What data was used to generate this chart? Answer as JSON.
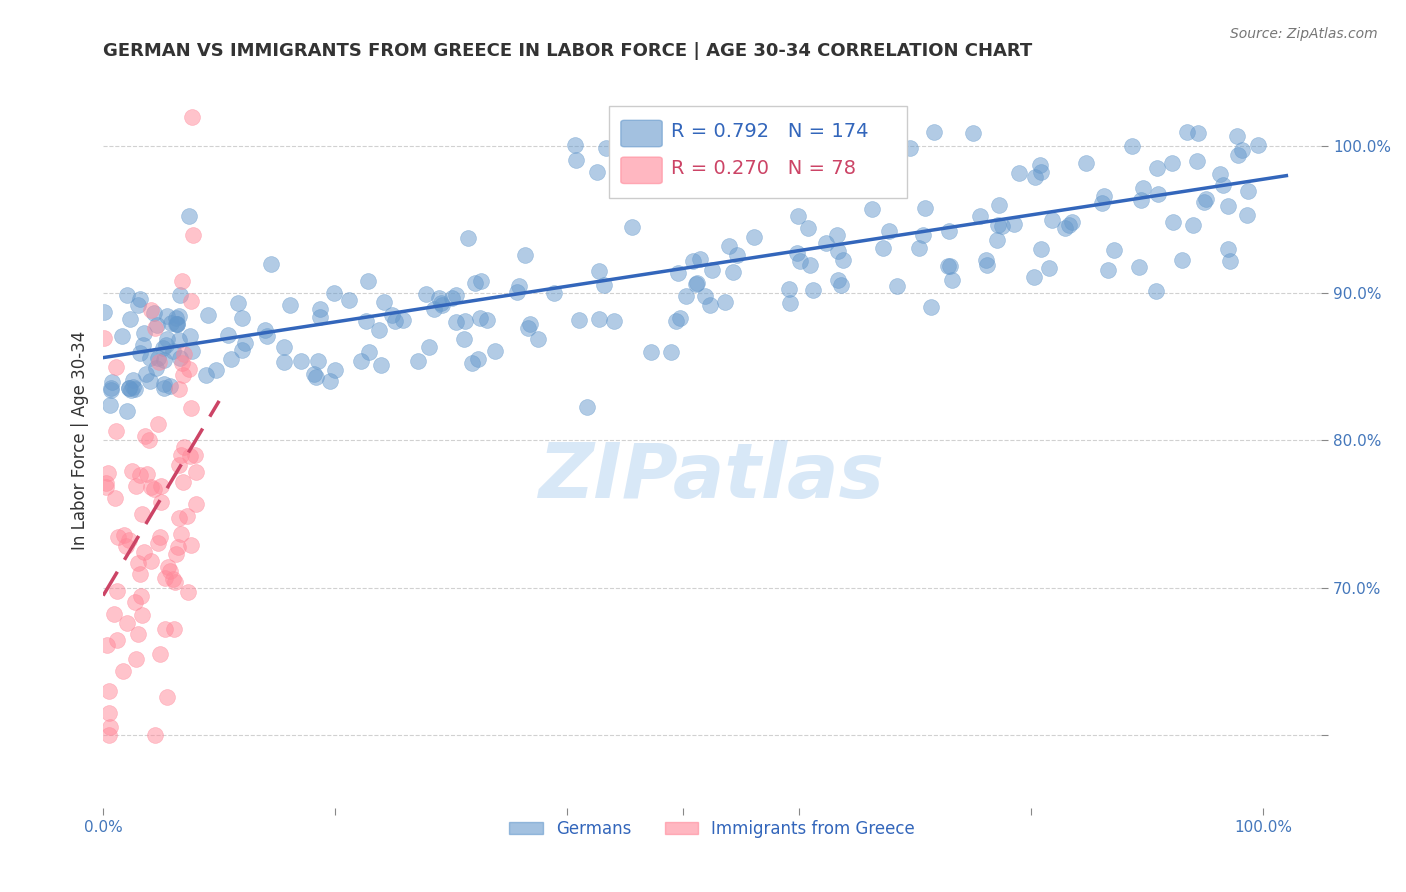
{
  "title": "GERMAN VS IMMIGRANTS FROM GREECE IN LABOR FORCE | AGE 30-34 CORRELATION CHART",
  "source": "Source: ZipAtlas.com",
  "ylabel": "In Labor Force | Age 30-34",
  "xlim": [
    0.0,
    1.05
  ],
  "ylim": [
    0.55,
    1.05
  ],
  "blue_color": "#6699CC",
  "pink_color": "#FF8899",
  "blue_line_color": "#3366BB",
  "pink_line_color": "#CC4466",
  "legend_blue_R": "0.792",
  "legend_blue_N": "174",
  "legend_pink_R": "0.270",
  "legend_pink_N": "78",
  "watermark": "ZIPatlas",
  "watermark_color": "#AACCEE",
  "grid_color": "#CCCCCC",
  "tick_color": "#4477BB",
  "title_color": "#333333",
  "source_color": "#777777",
  "legend_label_blue": "Germans",
  "legend_label_pink": "Immigrants from Greece",
  "blue_R": 0.792,
  "blue_N": 174,
  "pink_R": 0.27,
  "pink_N": 78
}
